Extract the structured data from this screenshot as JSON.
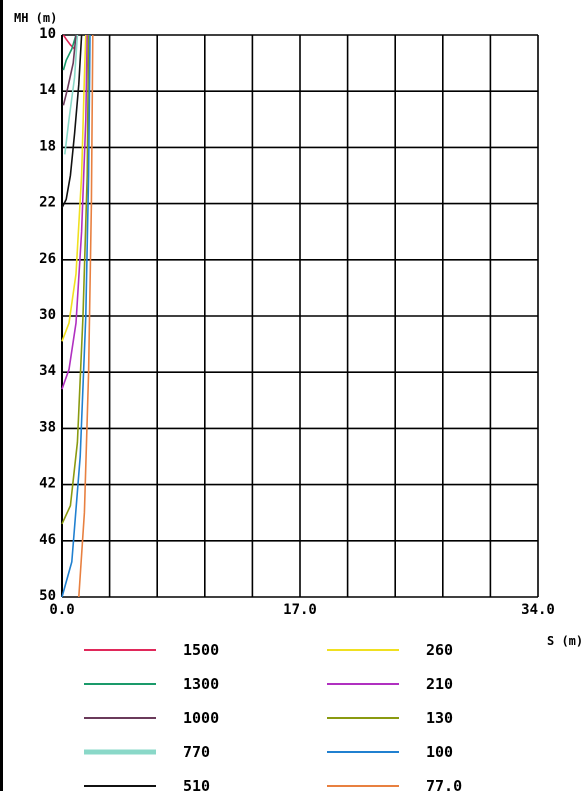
{
  "chart_data": {
    "type": "line",
    "xlabel": "S (m)",
    "ylabel": "MH (m)",
    "xlim": [
      0,
      34
    ],
    "ylim": [
      10,
      50
    ],
    "y_inverted": true,
    "grid": true,
    "x_ticks": [
      "0.0",
      "17.0",
      "34.0"
    ],
    "y_ticks": [
      "10",
      "14",
      "18",
      "22",
      "26",
      "30",
      "34",
      "38",
      "42",
      "46",
      "50"
    ],
    "legend_placement": "bottom",
    "series": [
      {
        "name": "1500",
        "color": "#e0285a",
        "points": [
          [
            0.1,
            10.0
          ],
          [
            0.3,
            10.3
          ],
          [
            0.6,
            10.7
          ],
          [
            0.9,
            11.0
          ]
        ]
      },
      {
        "name": "1300",
        "color": "#1a9a6a",
        "points": [
          [
            0.1,
            12.5
          ],
          [
            0.3,
            11.8
          ],
          [
            0.7,
            11.0
          ],
          [
            1.0,
            10.0
          ]
        ]
      },
      {
        "name": "1000",
        "color": "#6a3a5a",
        "points": [
          [
            0.1,
            15.0
          ],
          [
            0.4,
            13.8
          ],
          [
            0.8,
            12.0
          ],
          [
            1.0,
            10.0
          ]
        ]
      },
      {
        "name": "770",
        "color": "#8ad8c8",
        "points": [
          [
            0.2,
            18.5
          ],
          [
            0.5,
            16.0
          ],
          [
            0.9,
            13.0
          ],
          [
            1.1,
            10.0
          ]
        ]
      },
      {
        "name": "510",
        "color": "#111111",
        "points": [
          [
            0.0,
            22.3
          ],
          [
            0.3,
            21.7
          ],
          [
            0.6,
            20.0
          ],
          [
            0.9,
            17.0
          ],
          [
            1.2,
            13.5
          ],
          [
            1.4,
            10.0
          ]
        ]
      },
      {
        "name": "260",
        "color": "#f0e020",
        "points": [
          [
            0.0,
            31.8
          ],
          [
            0.5,
            30.5
          ],
          [
            1.0,
            27.0
          ],
          [
            1.4,
            20.0
          ],
          [
            1.6,
            13.0
          ],
          [
            1.7,
            10.0
          ]
        ]
      },
      {
        "name": "210",
        "color": "#b030c0",
        "points": [
          [
            0.0,
            35.2
          ],
          [
            0.5,
            33.8
          ],
          [
            1.0,
            30.5
          ],
          [
            1.4,
            24.0
          ],
          [
            1.7,
            16.0
          ],
          [
            1.8,
            10.0
          ]
        ]
      },
      {
        "name": "130",
        "color": "#8a9a10",
        "points": [
          [
            0.0,
            44.8
          ],
          [
            0.6,
            43.5
          ],
          [
            1.1,
            39.0
          ],
          [
            1.5,
            30.0
          ],
          [
            1.8,
            20.0
          ],
          [
            1.9,
            10.0
          ]
        ]
      },
      {
        "name": "100",
        "color": "#2080d0",
        "points": [
          [
            0.0,
            50.0
          ],
          [
            0.7,
            47.5
          ],
          [
            1.3,
            40.0
          ],
          [
            1.7,
            30.0
          ],
          [
            1.9,
            20.0
          ],
          [
            2.0,
            10.0
          ]
        ]
      },
      {
        "name": "77.0",
        "color": "#e88040",
        "points": [
          [
            1.2,
            50.0
          ],
          [
            1.6,
            44.0
          ],
          [
            1.9,
            34.0
          ],
          [
            2.1,
            22.0
          ],
          [
            2.2,
            10.0
          ]
        ]
      }
    ]
  }
}
